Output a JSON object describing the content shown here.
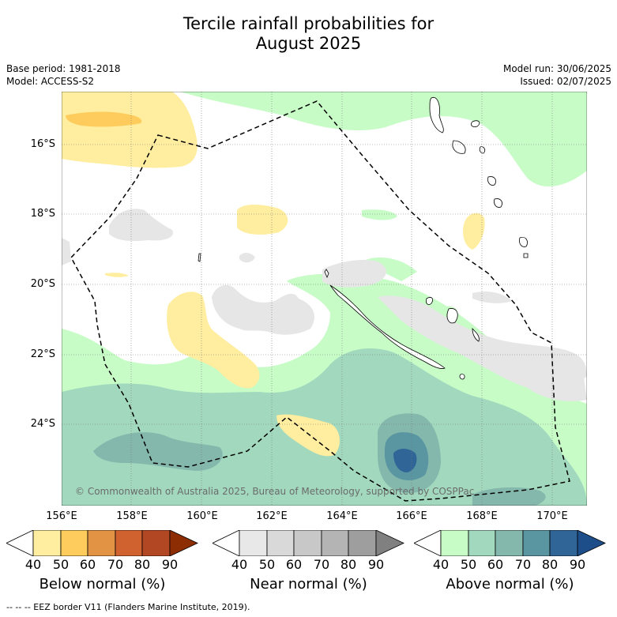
{
  "title_line1": "Tercile rainfall probabilities for",
  "title_line2": "August 2025",
  "base_period": "Base period: 1981-2018",
  "model": "Model: ACCESS-S2",
  "model_run": "Model run: 30/06/2025",
  "issued": "Issued: 02/07/2025",
  "lat_labels": [
    "16°S",
    "18°S",
    "20°S",
    "22°S",
    "24°S"
  ],
  "lon_labels": [
    "156°E",
    "158°E",
    "160°E",
    "162°E",
    "164°E",
    "166°E",
    "168°E",
    "170°E"
  ],
  "copyright": "© Commonwealth of Australia 2025, Bureau of Meteorology, supported by COSPPac",
  "colorbars": [
    {
      "title": "Below normal (%)",
      "ticks": [
        "40",
        "50",
        "60",
        "70",
        "80",
        "90"
      ],
      "colors": [
        "#ffffff",
        "#ffeda0",
        "#fecc5c",
        "#e29444",
        "#cf622e",
        "#b24723",
        "#8c2d04"
      ]
    },
    {
      "title": "Near normal (%)",
      "ticks": [
        "40",
        "50",
        "60",
        "70",
        "80",
        "90"
      ],
      "colors": [
        "#ffffff",
        "#e8e8e8",
        "#d9d9d9",
        "#c8c8c8",
        "#b4b4b4",
        "#9e9e9e",
        "#808080"
      ]
    },
    {
      "title": "Above normal (%)",
      "ticks": [
        "40",
        "50",
        "60",
        "70",
        "80",
        "90"
      ],
      "colors": [
        "#ffffff",
        "#c7fcc7",
        "#a2d9be",
        "#85b8ad",
        "#5a95a2",
        "#306598",
        "#1d4e89"
      ]
    }
  ],
  "footer": "--  --  -- EEZ border V11 (Flanders Marine Institute, 2019)."
}
